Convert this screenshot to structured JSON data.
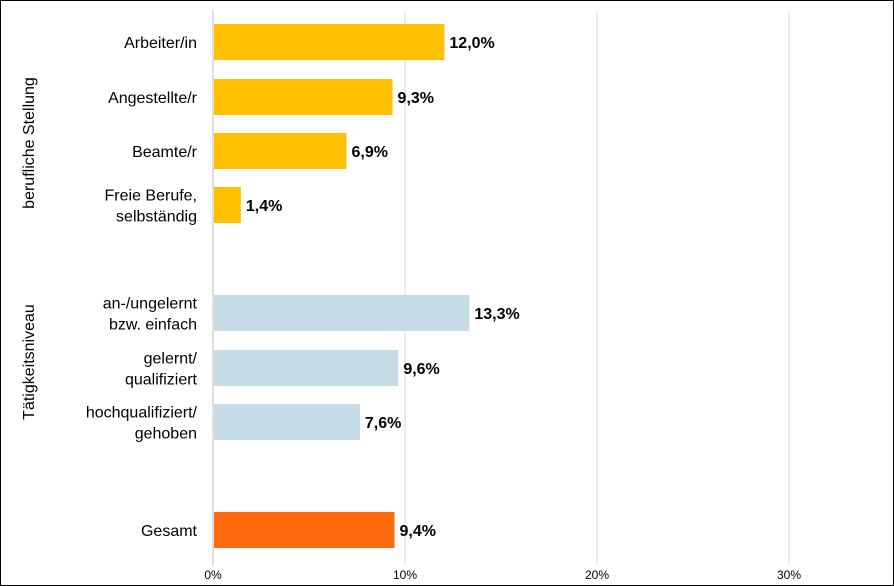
{
  "chart_data": {
    "type": "bar",
    "orientation": "horizontal",
    "groups": [
      {
        "label": "berufliche Stellung",
        "color": "#ffc000",
        "items": [
          {
            "label": [
              "Arbeiter/in"
            ],
            "value": 12.0,
            "value_label": "12,0%"
          },
          {
            "label": [
              "Angestellte/r"
            ],
            "value": 9.3,
            "value_label": "9,3%"
          },
          {
            "label": [
              "Beamte/r"
            ],
            "value": 6.9,
            "value_label": "6,9%"
          },
          {
            "label": [
              "Freie Berufe,",
              "selbständig"
            ],
            "value": 1.4,
            "value_label": "1,4%"
          }
        ]
      },
      {
        "label": "Tätigkeitsniveau",
        "color": "#c5dbe6",
        "items": [
          {
            "label": [
              "an-/ungelernt",
              "bzw. einfach"
            ],
            "value": 13.3,
            "value_label": "13,3%"
          },
          {
            "label": [
              "gelernt/",
              "qualifiziert"
            ],
            "value": 9.6,
            "value_label": "9,6%"
          },
          {
            "label": [
              "hochqualifiziert/",
              "gehoben"
            ],
            "value": 7.6,
            "value_label": "7,6%"
          }
        ]
      },
      {
        "label": "",
        "color": "#ff6a0e",
        "items": [
          {
            "label": [
              "Gesamt"
            ],
            "value": 9.4,
            "value_label": "9,4%"
          }
        ]
      }
    ],
    "x_ticks": [
      {
        "value": 0,
        "label": "0%"
      },
      {
        "value": 10,
        "label": "10%"
      },
      {
        "value": 20,
        "label": "20%"
      },
      {
        "value": 30,
        "label": "30%"
      }
    ],
    "xlim": [
      0,
      35
    ],
    "grid": true,
    "colors": {
      "gridline": "#d9d9d9",
      "axis": "#bfbfbf",
      "text": "#000000"
    }
  }
}
